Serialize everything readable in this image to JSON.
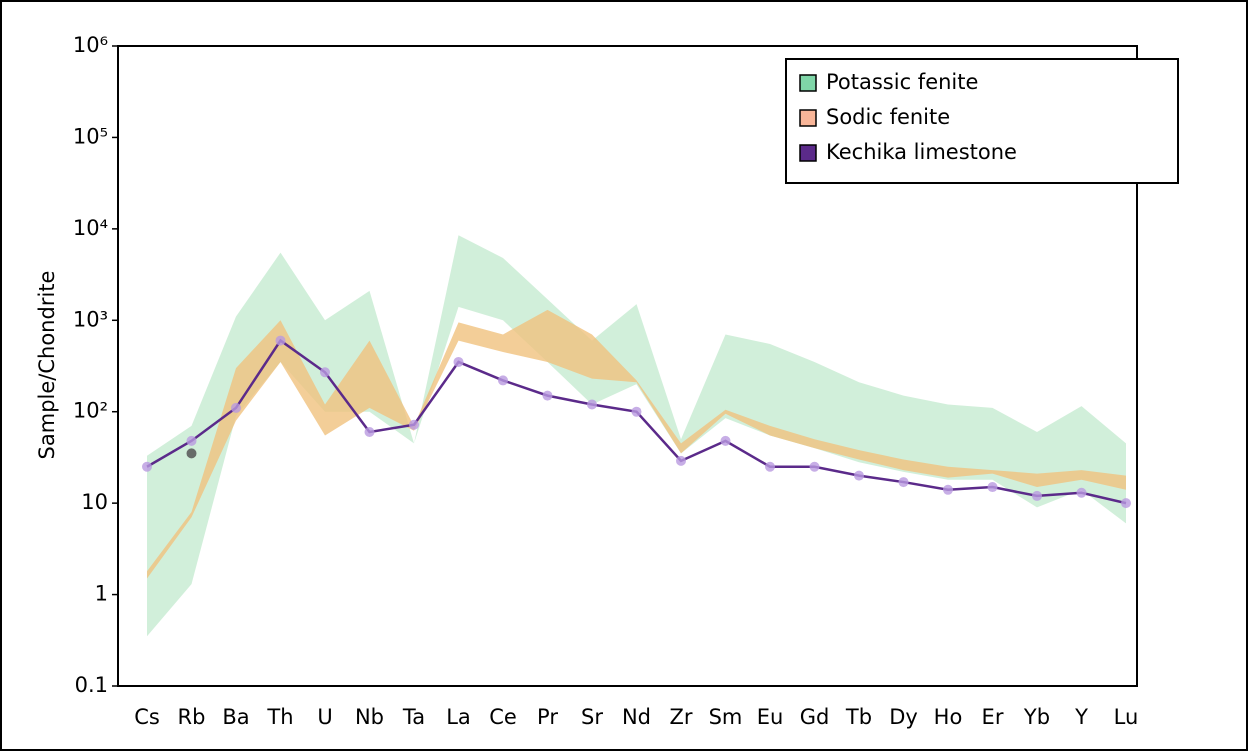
{
  "chart_data": {
    "type": "band-line",
    "y_label": "Sample/Chondrite",
    "log_scale": true,
    "legend": "upper right",
    "categories": [
      "Cs",
      "Rb",
      "Ba",
      "Th",
      "U",
      "Nb",
      "Ta",
      "La",
      "Ce",
      "Pr",
      "Sr",
      "Nd",
      "Zr",
      "Sm",
      "Eu",
      "Gd",
      "Tb",
      "Dy",
      "Ho",
      "Er",
      "Yb",
      "Y",
      "Lu"
    ],
    "ylim": [
      0.1,
      1000000
    ],
    "yticks": [
      0.1,
      1,
      10,
      {
        "value": 100,
        "label": "10²"
      },
      {
        "value": 1000,
        "label": "10³"
      },
      {
        "value": 10000,
        "label": "10⁴"
      },
      {
        "value": 100000,
        "label": "10⁵"
      },
      {
        "value": 1000000,
        "label": "10⁶"
      }
    ],
    "series": [
      {
        "name": "Potassic fenite",
        "kind": "band",
        "color": "#c9ecd3",
        "legend_color": "#7fd6a8",
        "upper": [
          33,
          70,
          1100,
          5500,
          1000,
          2100,
          45,
          8500,
          4800,
          1700,
          600,
          1500,
          50,
          700,
          550,
          350,
          210,
          150,
          120,
          110,
          60,
          115,
          45
        ],
        "lower": [
          0.35,
          1.3,
          90,
          350,
          100,
          100,
          45,
          1400,
          1000,
          350,
          120,
          200,
          35,
          85,
          55,
          40,
          28,
          22,
          18,
          18,
          9,
          14,
          6
        ]
      },
      {
        "name": "Sodic fenite",
        "kind": "band",
        "color": "#f0c27e",
        "legend_color": "#f8b598",
        "upper": [
          1.8,
          8,
          300,
          1000,
          120,
          600,
          70,
          950,
          700,
          1300,
          700,
          220,
          45,
          105,
          70,
          50,
          38,
          30,
          25,
          23,
          21,
          23,
          20
        ],
        "lower": [
          1.5,
          7,
          80,
          350,
          55,
          110,
          62,
          600,
          450,
          350,
          230,
          210,
          35,
          95,
          55,
          40,
          30,
          23,
          19,
          21,
          15,
          18,
          14
        ]
      },
      {
        "name": "Kechika limestone",
        "kind": "line",
        "color": "#5b2a8a",
        "marker_color": "#b99ae0",
        "values": [
          25,
          48,
          110,
          600,
          270,
          60,
          72,
          350,
          220,
          150,
          120,
          100,
          29,
          48,
          25,
          25,
          20,
          17,
          14,
          15,
          12,
          13,
          10
        ]
      }
    ],
    "markers": [
      {
        "x": "Rb",
        "value": 35,
        "color": "#555555"
      }
    ]
  }
}
